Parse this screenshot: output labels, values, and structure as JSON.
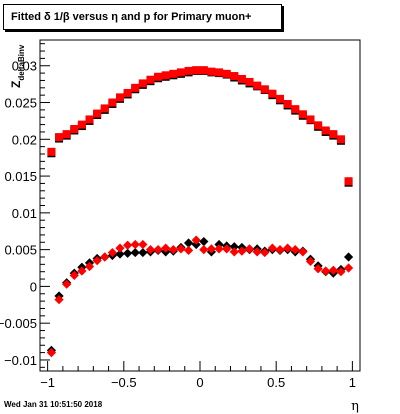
{
  "title": "Fitted δ 1/β versus η and p for Primary muon+",
  "datestamp": "Wed Jan 31 10:51:50 2018",
  "chart_data": {
    "type": "scatter",
    "title": "Fitted δ 1/β versus η and p for Primary muon+",
    "xlabel": "η",
    "ylabel": "Z_{deltaBinv}",
    "xlim": [
      -1.05,
      1.05
    ],
    "ylim": [
      -0.0115,
      0.0335
    ],
    "grid": false,
    "x_ticks": [
      "−1",
      "−0.5",
      "0",
      "0.5",
      "1"
    ],
    "x_tick_values": [
      -1,
      -0.5,
      0,
      0.5,
      1
    ],
    "y_ticks": [
      "−0.01",
      "−0.005",
      "0",
      "0.005",
      "0.01",
      "0.015",
      "0.02",
      "0.025",
      "0.03"
    ],
    "y_tick_values": [
      -0.01,
      -0.005,
      0,
      0.005,
      0.01,
      0.015,
      0.02,
      0.025,
      0.03
    ],
    "series": [
      {
        "marker": "square",
        "color": "#000000",
        "x": [
          -0.975,
          -0.925,
          -0.875,
          -0.825,
          -0.775,
          -0.725,
          -0.675,
          -0.625,
          -0.575,
          -0.525,
          -0.475,
          -0.425,
          -0.375,
          -0.325,
          -0.275,
          -0.225,
          -0.175,
          -0.125,
          -0.075,
          -0.025,
          0.025,
          0.075,
          0.125,
          0.175,
          0.225,
          0.275,
          0.325,
          0.375,
          0.425,
          0.475,
          0.525,
          0.575,
          0.625,
          0.675,
          0.725,
          0.775,
          0.825,
          0.875,
          0.925,
          0.975
        ],
        "values": [
          0.0181,
          0.0201,
          0.0205,
          0.0212,
          0.0218,
          0.0225,
          0.0233,
          0.024,
          0.0248,
          0.0255,
          0.0261,
          0.0268,
          0.0274,
          0.0279,
          0.0283,
          0.0285,
          0.0287,
          0.0289,
          0.0291,
          0.0293,
          0.0293,
          0.0291,
          0.029,
          0.0288,
          0.0284,
          0.028,
          0.0276,
          0.0272,
          0.0267,
          0.026,
          0.0253,
          0.0246,
          0.0239,
          0.0232,
          0.0226,
          0.0217,
          0.021,
          0.0205,
          0.0198,
          0.0141
        ]
      },
      {
        "marker": "square",
        "color": "#ff0000",
        "x": [
          -0.975,
          -0.925,
          -0.875,
          -0.825,
          -0.775,
          -0.725,
          -0.675,
          -0.625,
          -0.575,
          -0.525,
          -0.475,
          -0.425,
          -0.375,
          -0.325,
          -0.275,
          -0.225,
          -0.175,
          -0.125,
          -0.075,
          -0.025,
          0.025,
          0.075,
          0.125,
          0.175,
          0.225,
          0.275,
          0.325,
          0.375,
          0.425,
          0.475,
          0.525,
          0.575,
          0.625,
          0.675,
          0.725,
          0.775,
          0.825,
          0.875,
          0.925,
          0.975
        ],
        "values": [
          0.0183,
          0.0203,
          0.0207,
          0.0214,
          0.022,
          0.0227,
          0.0235,
          0.0242,
          0.025,
          0.0257,
          0.0263,
          0.027,
          0.0276,
          0.0281,
          0.0285,
          0.0287,
          0.0289,
          0.0291,
          0.0293,
          0.0294,
          0.0294,
          0.0292,
          0.0291,
          0.0289,
          0.0286,
          0.0282,
          0.0278,
          0.0273,
          0.0268,
          0.0262,
          0.0255,
          0.0248,
          0.0241,
          0.0234,
          0.0227,
          0.0219,
          0.0212,
          0.0207,
          0.02,
          0.0143
        ]
      },
      {
        "marker": "diamond",
        "color": "#000000",
        "x": [
          -0.975,
          -0.925,
          -0.875,
          -0.825,
          -0.775,
          -0.725,
          -0.675,
          -0.625,
          -0.575,
          -0.525,
          -0.475,
          -0.425,
          -0.375,
          -0.325,
          -0.275,
          -0.225,
          -0.175,
          -0.125,
          -0.075,
          -0.025,
          0.025,
          0.075,
          0.125,
          0.175,
          0.225,
          0.275,
          0.325,
          0.375,
          0.425,
          0.475,
          0.525,
          0.575,
          0.625,
          0.675,
          0.725,
          0.775,
          0.825,
          0.875,
          0.925,
          0.975
        ],
        "values": [
          -0.0087,
          -0.0013,
          0.0005,
          0.0018,
          0.0026,
          0.0032,
          0.0038,
          0.004,
          0.0042,
          0.0044,
          0.0045,
          0.0046,
          0.0046,
          0.0047,
          0.0049,
          0.0047,
          0.0048,
          0.0053,
          0.0059,
          0.0057,
          0.0061,
          0.0047,
          0.0057,
          0.0055,
          0.0054,
          0.0053,
          0.005,
          0.0051,
          0.0048,
          0.005,
          0.0049,
          0.005,
          0.0047,
          0.0048,
          0.0037,
          0.0028,
          0.002,
          0.0018,
          0.0023,
          0.004
        ]
      },
      {
        "marker": "diamond",
        "color": "#ff0000",
        "x": [
          -0.975,
          -0.925,
          -0.875,
          -0.825,
          -0.775,
          -0.725,
          -0.675,
          -0.625,
          -0.575,
          -0.525,
          -0.475,
          -0.425,
          -0.375,
          -0.325,
          -0.275,
          -0.225,
          -0.175,
          -0.125,
          -0.075,
          -0.025,
          0.025,
          0.075,
          0.125,
          0.175,
          0.225,
          0.275,
          0.325,
          0.375,
          0.425,
          0.475,
          0.525,
          0.575,
          0.625,
          0.675,
          0.725,
          0.775,
          0.825,
          0.875,
          0.925,
          0.975
        ],
        "values": [
          -0.009,
          -0.0018,
          0.0003,
          0.0015,
          0.0021,
          0.0027,
          0.0035,
          0.004,
          0.0046,
          0.0052,
          0.0056,
          0.0057,
          0.0057,
          0.005,
          0.005,
          0.0052,
          0.005,
          0.0051,
          0.0049,
          0.0063,
          0.005,
          0.0051,
          0.0051,
          0.0051,
          0.0047,
          0.0048,
          0.0051,
          0.0047,
          0.0046,
          0.0052,
          0.005,
          0.0052,
          0.005,
          0.0047,
          0.0034,
          0.0024,
          0.0021,
          0.0022,
          0.002,
          0.0025
        ]
      }
    ]
  }
}
